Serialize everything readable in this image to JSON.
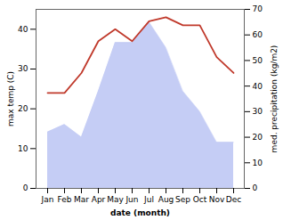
{
  "chart_data": {
    "type": "line",
    "categories": [
      "Jan",
      "Feb",
      "Mar",
      "Apr",
      "May",
      "Jun",
      "Jul",
      "Aug",
      "Sep",
      "Oct",
      "Nov",
      "Dec"
    ],
    "xlabel": "date (month)",
    "ylabel": "max temp (C)",
    "y2label": "med. precipitation (kg/m2)",
    "ylim": [
      0,
      45
    ],
    "yticks": [
      0,
      10,
      20,
      30,
      40
    ],
    "y2lim": [
      0,
      70
    ],
    "y2ticks": [
      0,
      10,
      20,
      30,
      40,
      50,
      60,
      70
    ],
    "series": [
      {
        "type": "area",
        "axis": "y2",
        "color": "#c5cdf5",
        "values": [
          22,
          25,
          20,
          38,
          57,
          57,
          65,
          55,
          38,
          30,
          18,
          18
        ]
      },
      {
        "type": "line",
        "color": "#c0392b",
        "values": [
          24,
          24,
          29,
          37,
          40,
          37,
          42,
          43,
          41,
          41,
          33,
          29
        ]
      }
    ]
  }
}
